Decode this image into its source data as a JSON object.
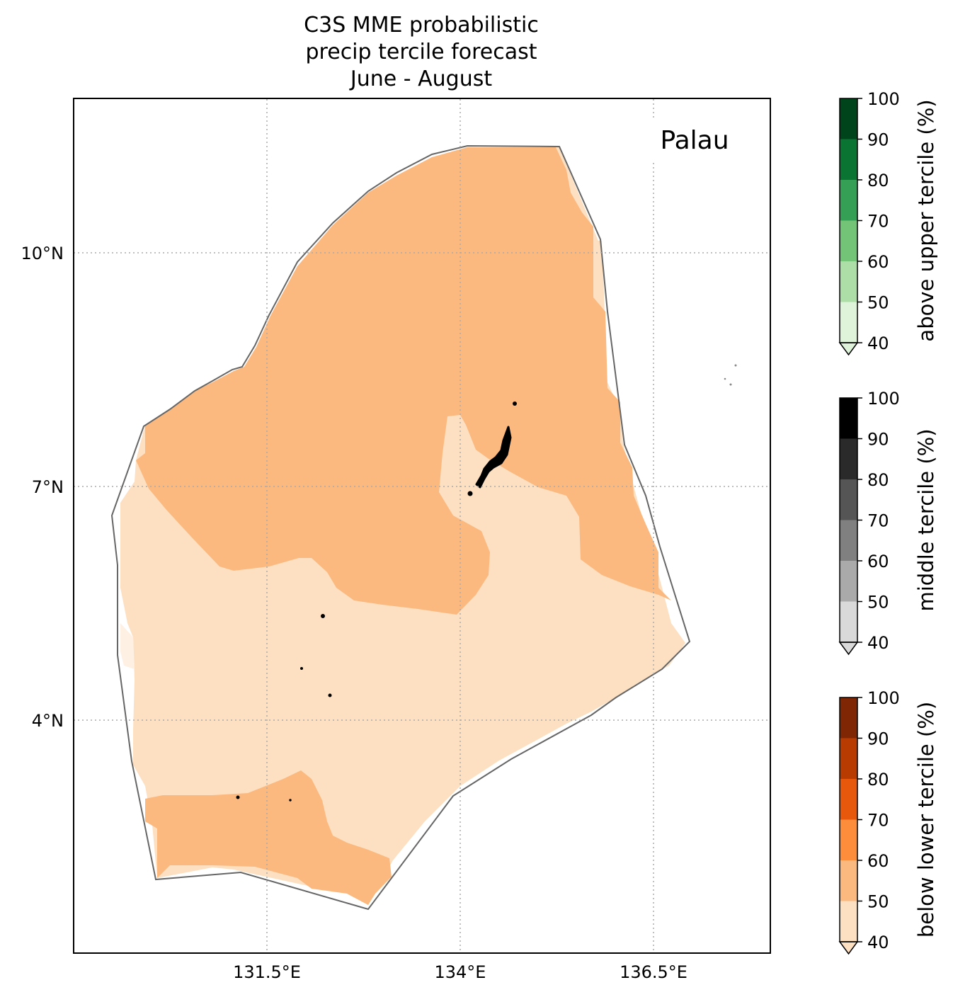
{
  "title": {
    "line1": "C3S MME probabilistic",
    "line2": "precip tercile forecast",
    "line3": "June - August"
  },
  "region_label": "Palau",
  "axes": {
    "x_ticks": [
      "131.5°E",
      "134°E",
      "136.5°E"
    ],
    "y_ticks": [
      "10°N",
      "7°N",
      "4°N"
    ],
    "gridlines": "dotted"
  },
  "colorbars": [
    {
      "label": "above upper tercile (%)",
      "ticks": [
        "100",
        "90",
        "80",
        "70",
        "60",
        "50",
        "40"
      ],
      "colors": [
        "#00441b",
        "#0a7532",
        "#35a055",
        "#73c476",
        "#addea7",
        "#def3da"
      ]
    },
    {
      "label": "middle tercile (%)",
      "ticks": [
        "100",
        "90",
        "80",
        "70",
        "60",
        "50",
        "40"
      ],
      "colors": [
        "#000000",
        "#2a2a2a",
        "#555555",
        "#808080",
        "#aaaaaa",
        "#d9d9d9"
      ]
    },
    {
      "label": "below lower tercile (%)",
      "ticks": [
        "100",
        "90",
        "80",
        "70",
        "60",
        "50",
        "40"
      ],
      "colors": [
        "#7f2704",
        "#b83c02",
        "#e8580c",
        "#fd8c3b",
        "#fbb97f",
        "#fde0c2"
      ]
    }
  ],
  "map_fills": {
    "category": "below lower tercile",
    "levels": [
      {
        "range": "50-60%",
        "color": "#fbb97f"
      },
      {
        "range": "40-50%",
        "color": "#fde0c2"
      }
    ],
    "boundary_color": "#666666"
  }
}
